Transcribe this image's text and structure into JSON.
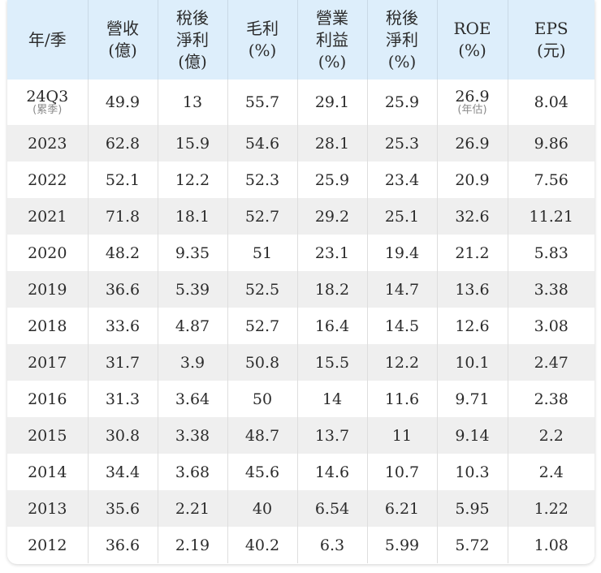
{
  "table": {
    "headers": [
      [
        "年/季"
      ],
      [
        "營收",
        "(億)"
      ],
      [
        "稅後",
        "淨利",
        "(億)"
      ],
      [
        "毛利",
        "(%)"
      ],
      [
        "營業",
        "利益",
        "(%)"
      ],
      [
        "稅後",
        "淨利",
        "(%)"
      ],
      [
        "ROE",
        "(%)"
      ],
      [
        "EPS",
        "(元)"
      ]
    ],
    "first_row": {
      "period": "24Q3",
      "period_note": "(累季)",
      "revenue": "49.9",
      "net_income": "13",
      "gross_margin": "55.7",
      "operating_margin": "29.1",
      "net_margin": "25.9",
      "roe": "26.9",
      "roe_note": "(年估)",
      "eps": "8.04"
    },
    "rows": [
      [
        "2023",
        "62.8",
        "15.9",
        "54.6",
        "28.1",
        "25.3",
        "26.9",
        "9.86"
      ],
      [
        "2022",
        "52.1",
        "12.2",
        "52.3",
        "25.9",
        "23.4",
        "20.9",
        "7.56"
      ],
      [
        "2021",
        "71.8",
        "18.1",
        "52.7",
        "29.2",
        "25.1",
        "32.6",
        "11.21"
      ],
      [
        "2020",
        "48.2",
        "9.35",
        "51",
        "23.1",
        "19.4",
        "21.2",
        "5.83"
      ],
      [
        "2019",
        "36.6",
        "5.39",
        "52.5",
        "18.2",
        "14.7",
        "13.6",
        "3.38"
      ],
      [
        "2018",
        "33.6",
        "4.87",
        "52.7",
        "16.4",
        "14.5",
        "12.6",
        "3.08"
      ],
      [
        "2017",
        "31.7",
        "3.9",
        "50.8",
        "15.5",
        "12.2",
        "10.1",
        "2.47"
      ],
      [
        "2016",
        "31.3",
        "3.64",
        "50",
        "14",
        "11.6",
        "9.71",
        "2.38"
      ],
      [
        "2015",
        "30.8",
        "3.38",
        "48.7",
        "13.7",
        "11",
        "9.14",
        "2.2"
      ],
      [
        "2014",
        "34.4",
        "3.68",
        "45.6",
        "14.6",
        "10.7",
        "10.3",
        "2.4"
      ],
      [
        "2013",
        "35.6",
        "2.21",
        "40",
        "6.54",
        "6.21",
        "5.95",
        "1.22"
      ],
      [
        "2012",
        "36.6",
        "2.19",
        "40.2",
        "6.3",
        "5.99",
        "5.72",
        "1.08"
      ]
    ]
  },
  "colors": {
    "header_bg": "#ddeefb",
    "stripe_bg": "#efefef",
    "text": "#2b2b2b",
    "note_text": "#8a8a8a"
  }
}
